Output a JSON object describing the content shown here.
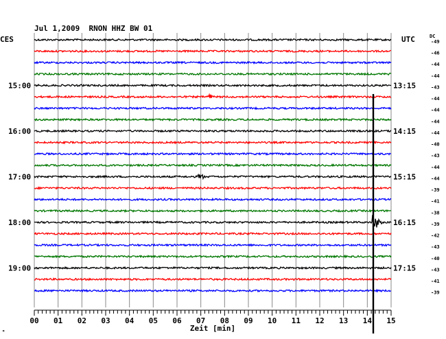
{
  "chart_data": {
    "type": "line",
    "title": "Jul 1,2009  RNON HHZ BW 01",
    "left_axis_label": "CES",
    "right_axis_label": "UTC",
    "dc_label": "DC",
    "xlabel": "Zeit [min]",
    "xlim": [
      0,
      15
    ],
    "x_ticks": [
      "00",
      "01",
      "02",
      "03",
      "04",
      "05",
      "06",
      "07",
      "08",
      "09",
      "10",
      "11",
      "12",
      "13",
      "14",
      "15"
    ],
    "grid": true,
    "trace_colors": [
      "#000000",
      "#ff0000",
      "#0000ff",
      "#007700"
    ],
    "left_hour_labels": [
      {
        "trace": 4,
        "text": "15:00"
      },
      {
        "trace": 8,
        "text": "16:00"
      },
      {
        "trace": 12,
        "text": "17:00"
      },
      {
        "trace": 16,
        "text": "18:00"
      },
      {
        "trace": 20,
        "text": "19:00"
      }
    ],
    "right_hour_labels": [
      {
        "trace": 4,
        "text": "13:15"
      },
      {
        "trace": 8,
        "text": "14:15"
      },
      {
        "trace": 12,
        "text": "15:15"
      },
      {
        "trace": 16,
        "text": "16:15"
      },
      {
        "trace": 20,
        "text": "17:15"
      }
    ],
    "dc_offsets": [
      -49,
      -46,
      -44,
      -44,
      -43,
      -44,
      -44,
      -44,
      -44,
      -40,
      -43,
      -44,
      -44,
      -39,
      -41,
      -38,
      -39,
      -42,
      -43,
      -40,
      -43,
      -41,
      -39
    ],
    "events": [
      {
        "trace": 5,
        "minute": 7.4,
        "amplitude": "small"
      },
      {
        "trace": 12,
        "minute": 7.0,
        "amplitude": "small"
      },
      {
        "trace": 16,
        "minute": 14.3,
        "amplitude": "large"
      }
    ],
    "marker_minute": 14.25,
    "bottom_note": "ᴹ"
  }
}
